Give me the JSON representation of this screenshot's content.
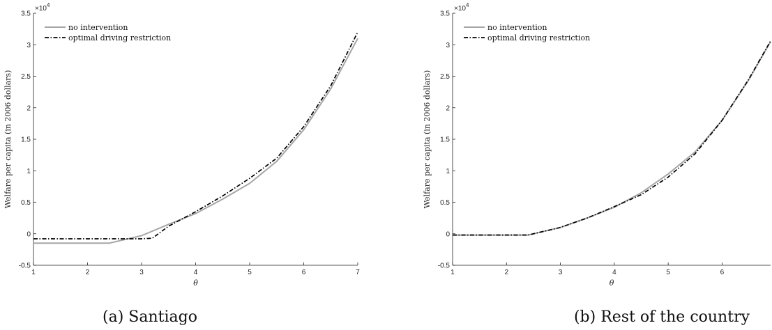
{
  "colors": {
    "no_intervention": "#a6a6a6",
    "restriction": "#000000",
    "axis": "#222222"
  },
  "chart_data": [
    {
      "type": "line",
      "caption": "(a) Santiago",
      "xlabel": "θ",
      "ylabel": "Welfare per capita (in 2006 dollars)",
      "y_exponent_base": "×10",
      "y_exponent_power": "4",
      "xlim": [
        1,
        7
      ],
      "ylim": [
        -5000,
        35000
      ],
      "xticks": [
        1,
        2,
        3,
        4,
        5,
        6,
        7
      ],
      "xtick_labels": [
        "1",
        "2",
        "3",
        "4",
        "5",
        "6",
        "7"
      ],
      "yticks": [
        -5000,
        0,
        5000,
        10000,
        15000,
        20000,
        25000,
        30000,
        35000
      ],
      "ytick_labels": [
        "-0.5",
        "0",
        "0.5",
        "1",
        "1.5",
        "2",
        "2.5",
        "3",
        "3.5"
      ],
      "grid": false,
      "legend_position": "top-left",
      "series": [
        {
          "name": "no intervention",
          "style": "solid",
          "color": "#a6a6a6",
          "x": [
            1,
            1.5,
            2,
            2.4,
            2.7,
            3.0,
            3.5,
            4.0,
            4.5,
            5.0,
            5.5,
            6.0,
            6.5,
            7.0
          ],
          "y": [
            -1500,
            -1500,
            -1500,
            -1500,
            -900,
            -300,
            1500,
            3200,
            5500,
            8000,
            11500,
            16500,
            23000,
            31000
          ]
        },
        {
          "name": "optimal driving restriction",
          "style": "dashdot",
          "color": "#000000",
          "x": [
            1,
            1.5,
            2,
            2.5,
            3.0,
            3.2,
            3.5,
            4.0,
            4.5,
            5.0,
            5.5,
            6.0,
            6.5,
            7.0
          ],
          "y": [
            -800,
            -800,
            -800,
            -800,
            -800,
            -700,
            1200,
            3500,
            6000,
            8800,
            12000,
            17000,
            23500,
            32000
          ]
        }
      ]
    },
    {
      "type": "line",
      "caption": "(b) Rest of the country",
      "xlabel": "θ",
      "ylabel": "Welfare per capita (in 2006 dollars)",
      "y_exponent_base": "×10",
      "y_exponent_power": "4",
      "xlim": [
        1,
        6.9
      ],
      "ylim": [
        -5000,
        35000
      ],
      "xticks": [
        1,
        2,
        3,
        4,
        5,
        6
      ],
      "xtick_labels": [
        "1",
        "2",
        "3",
        "4",
        "5",
        "6"
      ],
      "yticks": [
        -5000,
        0,
        5000,
        10000,
        15000,
        20000,
        25000,
        30000,
        35000
      ],
      "ytick_labels": [
        "-0.5",
        "0",
        "0.5",
        "1",
        "1.5",
        "2",
        "2.5",
        "3",
        "3.5"
      ],
      "grid": false,
      "legend_position": "top-left",
      "series": [
        {
          "name": "no intervention",
          "style": "solid",
          "color": "#a6a6a6",
          "x": [
            1,
            1.5,
            2,
            2.4,
            3.0,
            3.5,
            4.0,
            4.5,
            5.0,
            5.5,
            6.0,
            6.5,
            6.9
          ],
          "y": [
            -200,
            -200,
            -200,
            -200,
            1000,
            2500,
            4200,
            6500,
            9500,
            13000,
            18000,
            24500,
            30500
          ]
        },
        {
          "name": "optimal driving restriction",
          "style": "dashdot",
          "color": "#000000",
          "x": [
            1,
            1.5,
            2,
            2.4,
            3.0,
            3.5,
            4.0,
            4.5,
            5.0,
            5.5,
            6.0,
            6.5,
            6.9
          ],
          "y": [
            -200,
            -200,
            -200,
            -200,
            1000,
            2500,
            4300,
            6200,
            9000,
            12700,
            18000,
            24600,
            30600
          ]
        }
      ]
    }
  ]
}
